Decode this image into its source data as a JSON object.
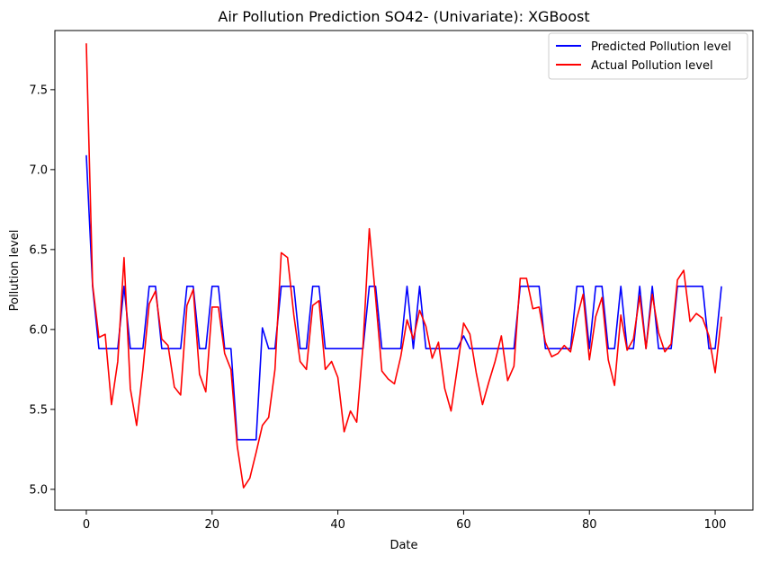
{
  "chart_data": {
    "type": "line",
    "title": "Air Pollution Prediction SO42- (Univariate): XGBoost",
    "xlabel": "Date",
    "ylabel": "Pollution level",
    "xlim": [
      -5,
      106
    ],
    "ylim": [
      4.87,
      7.87
    ],
    "xticks": [
      0,
      20,
      40,
      60,
      80,
      100
    ],
    "yticks": [
      5.0,
      5.5,
      6.0,
      6.5,
      7.0,
      7.5
    ],
    "grid": false,
    "legend_position": "top-right",
    "x": [
      0,
      1,
      2,
      3,
      4,
      5,
      6,
      7,
      8,
      9,
      10,
      11,
      12,
      13,
      14,
      15,
      16,
      17,
      18,
      19,
      20,
      21,
      22,
      23,
      24,
      25,
      26,
      27,
      28,
      29,
      30,
      31,
      32,
      33,
      34,
      35,
      36,
      37,
      38,
      39,
      40,
      41,
      42,
      43,
      44,
      45,
      46,
      47,
      48,
      49,
      50,
      51,
      52,
      53,
      54,
      55,
      56,
      57,
      58,
      59,
      60,
      61,
      62,
      63,
      64,
      65,
      66,
      67,
      68,
      69,
      70,
      71,
      72,
      73,
      74,
      75,
      76,
      77,
      78,
      79,
      80,
      81,
      82,
      83,
      84,
      85,
      86,
      87,
      88,
      89,
      90,
      91,
      92,
      93,
      94,
      95,
      96,
      97,
      98,
      99,
      100,
      101
    ],
    "series": [
      {
        "name": "Predicted Pollution level",
        "color": "#0000ff",
        "values": [
          7.09,
          6.27,
          5.88,
          5.88,
          5.88,
          5.88,
          6.27,
          5.88,
          5.88,
          5.88,
          6.27,
          6.27,
          5.88,
          5.88,
          5.88,
          5.88,
          6.27,
          6.27,
          5.88,
          5.88,
          6.27,
          6.27,
          5.88,
          5.88,
          5.31,
          5.31,
          5.31,
          5.31,
          6.01,
          5.88,
          5.88,
          6.27,
          6.27,
          6.27,
          5.88,
          5.88,
          6.27,
          6.27,
          5.88,
          5.88,
          5.88,
          5.88,
          5.88,
          5.88,
          5.88,
          6.27,
          6.27,
          5.88,
          5.88,
          5.88,
          5.88,
          6.27,
          5.88,
          6.27,
          5.88,
          5.88,
          5.88,
          5.88,
          5.88,
          5.88,
          5.96,
          5.88,
          5.88,
          5.88,
          5.88,
          5.88,
          5.88,
          5.88,
          5.88,
          6.27,
          6.27,
          6.27,
          6.27,
          5.88,
          5.88,
          5.88,
          5.88,
          5.88,
          6.27,
          6.27,
          5.88,
          6.27,
          6.27,
          5.88,
          5.88,
          6.27,
          5.88,
          5.88,
          6.27,
          5.88,
          6.27,
          5.88,
          5.88,
          5.88,
          6.27,
          6.27,
          6.27,
          6.27,
          6.27,
          5.88,
          5.88,
          6.27
        ]
      },
      {
        "name": "Actual Pollution level",
        "color": "#ff0000",
        "values": [
          7.79,
          6.28,
          5.95,
          5.97,
          5.53,
          5.8,
          6.45,
          5.63,
          5.4,
          5.75,
          6.16,
          6.24,
          5.94,
          5.9,
          5.64,
          5.59,
          6.15,
          6.25,
          5.72,
          5.61,
          6.14,
          6.14,
          5.85,
          5.75,
          5.27,
          5.01,
          5.07,
          5.23,
          5.4,
          5.45,
          5.75,
          6.48,
          6.45,
          6.09,
          5.8,
          5.75,
          6.15,
          6.18,
          5.75,
          5.8,
          5.7,
          5.36,
          5.49,
          5.42,
          5.9,
          6.63,
          6.2,
          5.74,
          5.69,
          5.66,
          5.83,
          6.06,
          5.94,
          6.12,
          6.02,
          5.82,
          5.92,
          5.63,
          5.49,
          5.76,
          6.04,
          5.97,
          5.73,
          5.53,
          5.67,
          5.8,
          5.96,
          5.68,
          5.77,
          6.32,
          6.32,
          6.13,
          6.14,
          5.92,
          5.83,
          5.85,
          5.9,
          5.86,
          6.07,
          6.22,
          5.81,
          6.08,
          6.2,
          5.81,
          5.65,
          6.09,
          5.87,
          5.94,
          6.21,
          5.88,
          6.22,
          5.98,
          5.86,
          5.91,
          6.31,
          6.37,
          6.05,
          6.1,
          6.07,
          5.96,
          5.73,
          6.08
        ]
      }
    ]
  }
}
